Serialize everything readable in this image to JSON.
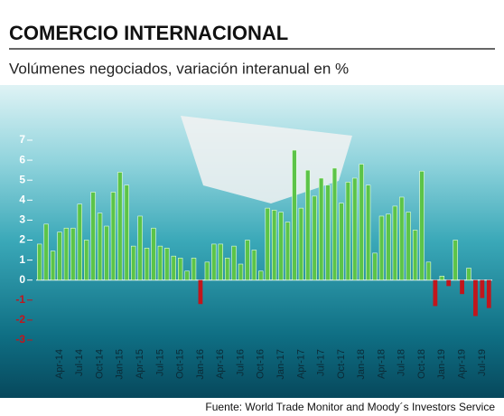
{
  "chart_data": {
    "type": "bar",
    "title": "COMERCIO INTERNACIONAL",
    "subtitle": "Volúmenes negociados, variación interanual en %",
    "source": "Fuente: World Trade Monitor and Moody´s Investors Service",
    "categories": [
      null,
      null,
      null,
      "Apr-14",
      null,
      null,
      "Jul-14",
      null,
      null,
      "Oct-14",
      null,
      null,
      "Jan-15",
      null,
      null,
      "Apr-15",
      null,
      null,
      "Jul-15",
      null,
      null,
      "Oct-15",
      null,
      null,
      "Jan-16",
      null,
      null,
      "Apr-16",
      null,
      null,
      "Jul-16",
      null,
      null,
      "Oct-16",
      null,
      null,
      "Jan-17",
      null,
      null,
      "Apr-17",
      null,
      null,
      "Jul-17",
      null,
      null,
      "Oct-17",
      null,
      null,
      "Jan-18",
      null,
      null,
      "Apr-18",
      null,
      null,
      "Jul-18",
      null,
      null,
      "Oct-18",
      null,
      null,
      "Jan-19",
      null,
      null,
      "Apr-19",
      null,
      null,
      "Jul-19",
      null
    ],
    "values": [
      1.8,
      2.8,
      1.45,
      2.4,
      2.6,
      2.6,
      3.8,
      2.0,
      4.4,
      3.35,
      2.7,
      4.4,
      5.4,
      4.75,
      1.7,
      3.2,
      1.6,
      2.6,
      1.7,
      1.6,
      1.2,
      1.1,
      0.45,
      1.1,
      -1.2,
      0.9,
      1.8,
      1.8,
      1.1,
      1.7,
      0.8,
      2.0,
      1.5,
      0.45,
      3.6,
      3.5,
      3.4,
      2.9,
      6.5,
      3.6,
      5.5,
      4.2,
      5.1,
      4.75,
      5.6,
      3.85,
      4.9,
      5.1,
      5.8,
      4.75,
      1.35,
      3.2,
      3.3,
      3.7,
      4.15,
      3.4,
      2.5,
      5.45,
      0.9,
      -1.3,
      0.2,
      -0.3,
      2.0,
      -0.7,
      0.6,
      -1.8,
      -0.9,
      -1.4
    ],
    "positive_color": "#5cc448",
    "negative_color": "#c1161c",
    "ylim": [
      -3,
      7
    ],
    "yticks": [
      -3,
      -2,
      -1,
      0,
      1,
      2,
      3,
      4,
      5,
      6,
      7
    ]
  }
}
